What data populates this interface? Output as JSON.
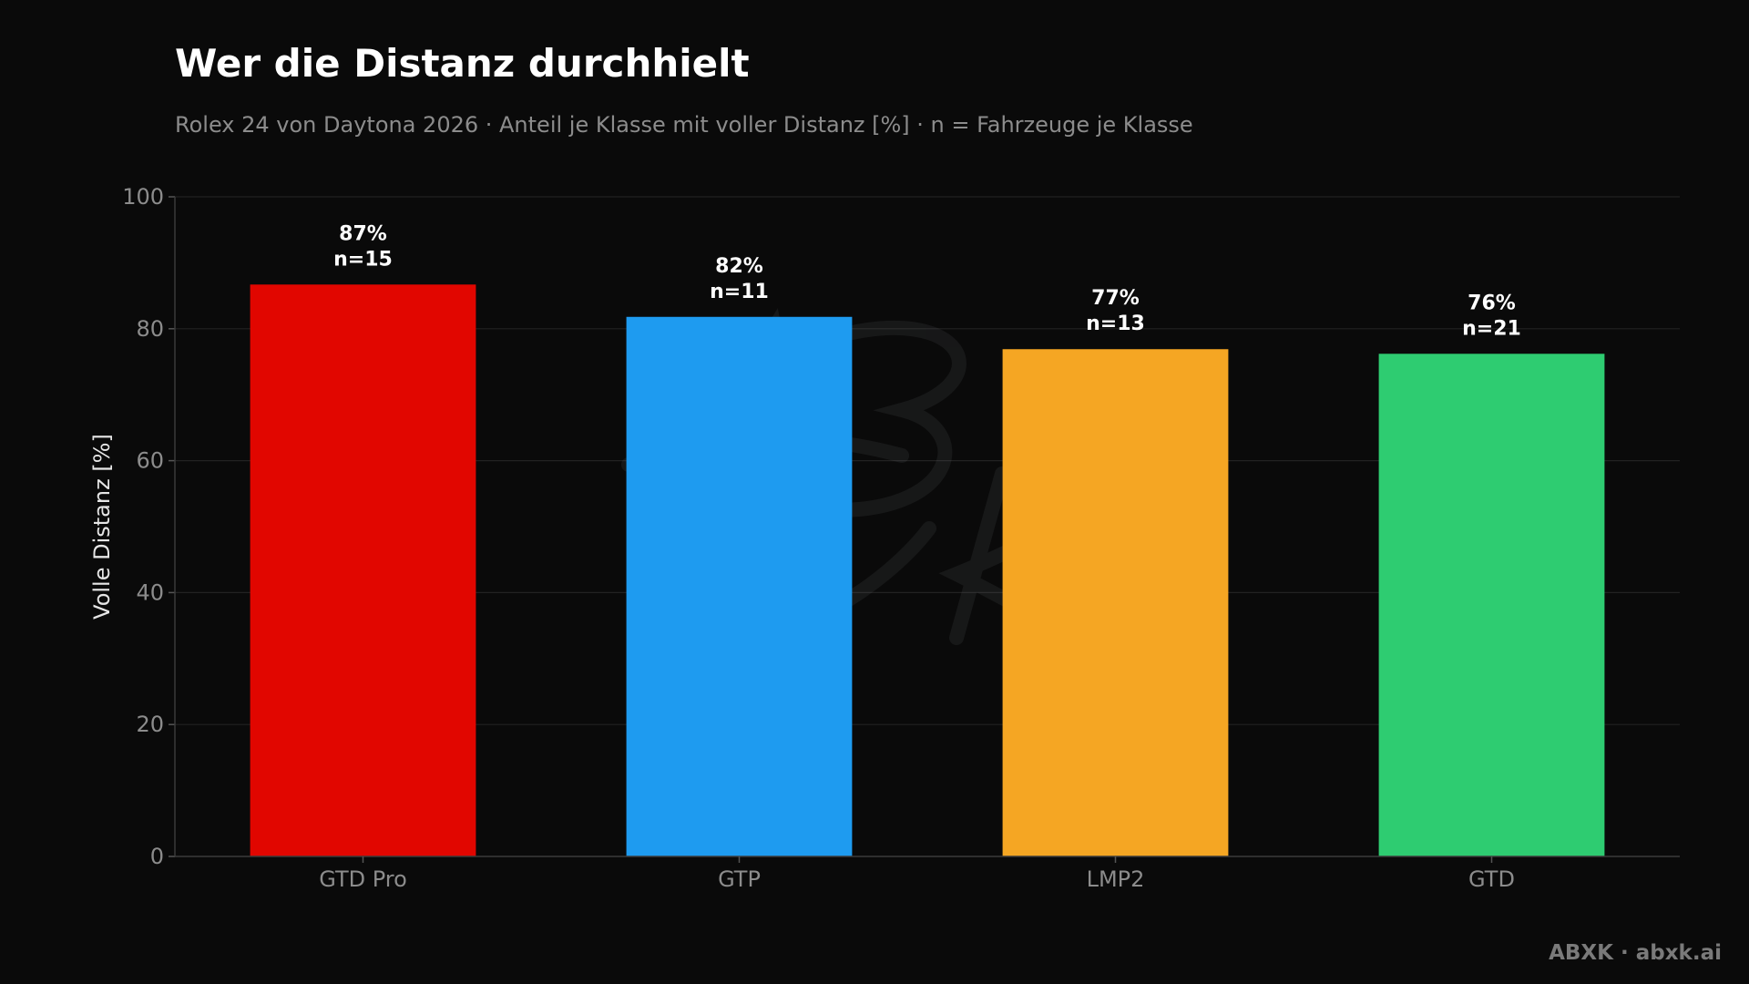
{
  "chart_data": {
    "type": "bar",
    "title": "Wer die Distanz durchhielt",
    "subtitle": "Rolex 24 von Daytona 2026 · Anteil je Klasse mit voller Distanz [%] · n = Fahrzeuge je Klasse",
    "xlabel": "",
    "ylabel": "Volle Distanz [%]",
    "ylim": [
      0,
      100
    ],
    "yticks": [
      0,
      20,
      40,
      60,
      80,
      100
    ],
    "grid": true,
    "categories": [
      "GTD Pro",
      "GTP",
      "LMP2",
      "GTD"
    ],
    "values": [
      86.7,
      81.8,
      76.9,
      76.2
    ],
    "value_labels": [
      "87%",
      "82%",
      "77%",
      "76%"
    ],
    "counts": [
      "n=15",
      "n=11",
      "n=13",
      "n=21"
    ],
    "colors": [
      "#e10600",
      "#1e9bf0",
      "#f5a623",
      "#2ecc71"
    ]
  },
  "watermark": "ABXK",
  "footer": "ABXK · abxk.ai"
}
